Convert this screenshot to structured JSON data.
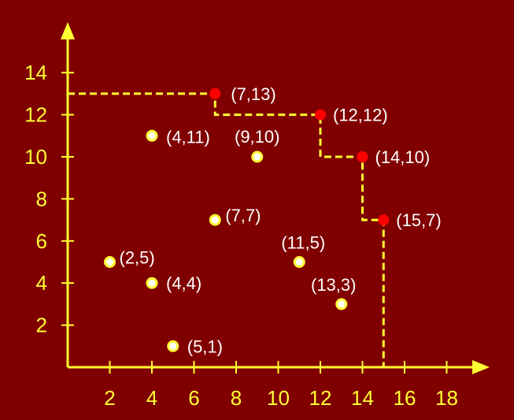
{
  "chart_data": {
    "type": "scatter",
    "title": "",
    "xlabel": "",
    "ylabel": "",
    "xlim": [
      0,
      18.5
    ],
    "ylim": [
      0,
      14.5
    ],
    "x_ticks": [
      2,
      4,
      6,
      8,
      10,
      12,
      14,
      16,
      18
    ],
    "y_ticks": [
      2,
      4,
      6,
      8,
      10,
      12,
      14
    ],
    "grid": false,
    "colors": {
      "background": "#800000",
      "axis": "#ffff33",
      "label": "#ffffff",
      "point_fill": "#ffffff",
      "point_stroke": "#ffff33",
      "maxima_fill": "#ff0000",
      "staircase": "#ffff33"
    },
    "series": [
      {
        "points": [
          {
            "x": 4,
            "y": 11,
            "label": "(4,11)"
          },
          {
            "x": 9,
            "y": 10,
            "label": "(9,10)"
          },
          {
            "x": 7,
            "y": 7,
            "label": "(7,7)"
          },
          {
            "x": 2,
            "y": 5,
            "label": "(2,5)"
          },
          {
            "x": 11,
            "y": 5,
            "label": "(11,5)"
          },
          {
            "x": 4,
            "y": 4,
            "label": "(4,4)"
          },
          {
            "x": 13,
            "y": 3,
            "label": "(13,3)"
          },
          {
            "x": 5,
            "y": 1,
            "label": "(5,1)"
          }
        ]
      },
      {
        "points": [
          {
            "x": 7,
            "y": 13,
            "label": "(7,13)"
          },
          {
            "x": 12,
            "y": 12,
            "label": "(12,12)"
          },
          {
            "x": 14,
            "y": 10,
            "label": "(14,10)"
          },
          {
            "x": 15,
            "y": 7,
            "label": "(15,7)"
          }
        ]
      }
    ]
  }
}
